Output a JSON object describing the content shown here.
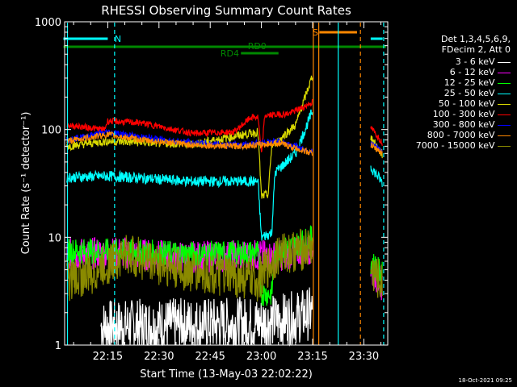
{
  "colors": {
    "background": "#000000",
    "axis": "#ffffff",
    "3_6": "#ffffff",
    "6_12": "#ff00ff",
    "12_25": "#00ff00",
    "25_50": "#00ffff",
    "50_100": "#d8d800",
    "100_300": "#ff0000",
    "300_800": "#0000ff",
    "800_7000": "#ff8800",
    "7000_15000": "#8a8a00",
    "flag_cyan": "#00ffff",
    "flag_green": "#008800",
    "flag_orange": "#ff8800"
  },
  "chart_data": {
    "type": "line",
    "title": "RHESSI Observing Summary Count Rates",
    "xlabel": "Start Time (13-May-03 22:02:22)",
    "ylabel": "Count Rate (s⁻¹ detector⁻¹)",
    "y_scale": "log",
    "ylim": [
      1,
      1000
    ],
    "xlim": [
      "22:02:22",
      "23:37:00"
    ],
    "x_ticks": [
      "22:15",
      "22:30",
      "22:45",
      "23:00",
      "23:15",
      "23:30"
    ],
    "y_ticks": [
      "1",
      "10",
      "100",
      "1000"
    ],
    "legend_header": [
      "Det 1,3,4,5,6,9,",
      "FDecim 2, Att 0"
    ],
    "legend_placement": "right",
    "series": [
      {
        "name": "3 - 6 keV",
        "color_key": "3_6"
      },
      {
        "name": "6 - 12 keV",
        "color_key": "6_12"
      },
      {
        "name": "12 - 25 keV",
        "color_key": "12_25"
      },
      {
        "name": "25 - 50 keV",
        "color_key": "25_50"
      },
      {
        "name": "50 - 100 keV",
        "color_key": "50_100"
      },
      {
        "name": "100 - 300 keV",
        "color_key": "100_300"
      },
      {
        "name": "300 - 800 keV",
        "color_key": "300_800"
      },
      {
        "name": "800 - 7000 keV",
        "color_key": "800_7000"
      },
      {
        "name": "7000 - 15000 keV",
        "color_key": "7000_15000"
      }
    ],
    "flag_labels": {
      "night": "N",
      "saa": "S",
      "rd0": "RD0",
      "rd4": "RD4"
    },
    "footer_date": "18-Oct-2021 09:25"
  }
}
